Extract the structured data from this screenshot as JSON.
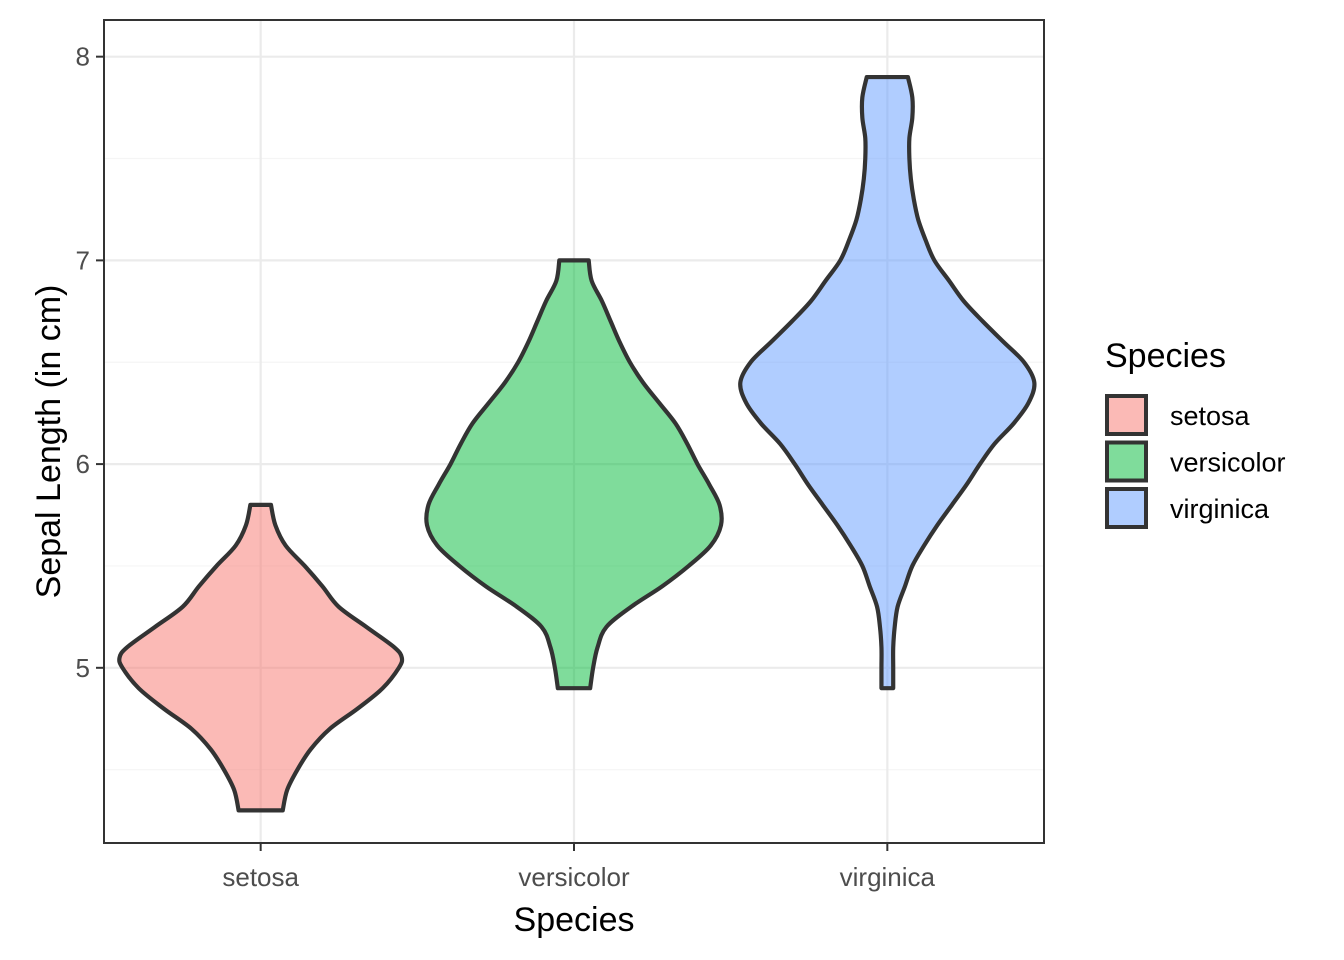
{
  "chart_data": {
    "type": "violin",
    "title": "",
    "xlabel": "Species",
    "ylabel": "Sepal Length (in cm)",
    "categories": [
      "setosa",
      "versicolor",
      "virginica"
    ],
    "ylim": [
      4.14,
      8.18
    ],
    "y_ticks": [
      5,
      6,
      7,
      8
    ],
    "y_tick_labels": [
      "5",
      "6",
      "7",
      "8"
    ],
    "grid": true,
    "legend": {
      "title": "Species",
      "position": "right",
      "entries": [
        "setosa",
        "versicolor",
        "virginica"
      ]
    },
    "colors": {
      "setosa": "#F8766D",
      "versicolor": "#00BA38",
      "virginica": "#619CFF",
      "outline": "#333333",
      "grid_major": "#ebebeb",
      "grid_minor": "#f5f5f5",
      "panel_border": "#333333"
    },
    "fill_alpha": 0.5,
    "series": [
      {
        "name": "setosa",
        "min": 4.3,
        "max": 5.8,
        "profile": [
          [
            4.3,
            0.15
          ],
          [
            4.4,
            0.18
          ],
          [
            4.5,
            0.25
          ],
          [
            4.6,
            0.34
          ],
          [
            4.7,
            0.47
          ],
          [
            4.8,
            0.66
          ],
          [
            4.9,
            0.83
          ],
          [
            5.0,
            0.94
          ],
          [
            5.05,
            0.96
          ],
          [
            5.1,
            0.91
          ],
          [
            5.2,
            0.72
          ],
          [
            5.3,
            0.53
          ],
          [
            5.4,
            0.42
          ],
          [
            5.5,
            0.3
          ],
          [
            5.6,
            0.17
          ],
          [
            5.7,
            0.1
          ],
          [
            5.8,
            0.07
          ]
        ]
      },
      {
        "name": "versicolor",
        "min": 4.9,
        "max": 7.0,
        "profile": [
          [
            4.9,
            0.11
          ],
          [
            5.0,
            0.13
          ],
          [
            5.1,
            0.16
          ],
          [
            5.2,
            0.22
          ],
          [
            5.3,
            0.39
          ],
          [
            5.4,
            0.6
          ],
          [
            5.5,
            0.78
          ],
          [
            5.6,
            0.93
          ],
          [
            5.7,
            1.0
          ],
          [
            5.8,
            0.99
          ],
          [
            5.9,
            0.92
          ],
          [
            6.0,
            0.84
          ],
          [
            6.1,
            0.77
          ],
          [
            6.2,
            0.69
          ],
          [
            6.3,
            0.58
          ],
          [
            6.4,
            0.47
          ],
          [
            6.5,
            0.38
          ],
          [
            6.6,
            0.31
          ],
          [
            6.7,
            0.25
          ],
          [
            6.8,
            0.19
          ],
          [
            6.9,
            0.12
          ],
          [
            7.0,
            0.1
          ]
        ]
      },
      {
        "name": "virginica",
        "min": 4.9,
        "max": 7.9,
        "profile": [
          [
            4.9,
            0.04
          ],
          [
            5.0,
            0.04
          ],
          [
            5.1,
            0.04
          ],
          [
            5.2,
            0.05
          ],
          [
            5.3,
            0.07
          ],
          [
            5.4,
            0.12
          ],
          [
            5.5,
            0.17
          ],
          [
            5.6,
            0.25
          ],
          [
            5.7,
            0.34
          ],
          [
            5.8,
            0.44
          ],
          [
            5.9,
            0.54
          ],
          [
            6.0,
            0.63
          ],
          [
            6.1,
            0.73
          ],
          [
            6.2,
            0.86
          ],
          [
            6.3,
            0.96
          ],
          [
            6.4,
            1.0
          ],
          [
            6.5,
            0.93
          ],
          [
            6.6,
            0.79
          ],
          [
            6.7,
            0.65
          ],
          [
            6.8,
            0.52
          ],
          [
            6.9,
            0.42
          ],
          [
            7.0,
            0.32
          ],
          [
            7.1,
            0.26
          ],
          [
            7.2,
            0.21
          ],
          [
            7.3,
            0.18
          ],
          [
            7.4,
            0.16
          ],
          [
            7.5,
            0.15
          ],
          [
            7.6,
            0.15
          ],
          [
            7.7,
            0.17
          ],
          [
            7.8,
            0.17
          ],
          [
            7.9,
            0.14
          ]
        ]
      }
    ]
  }
}
